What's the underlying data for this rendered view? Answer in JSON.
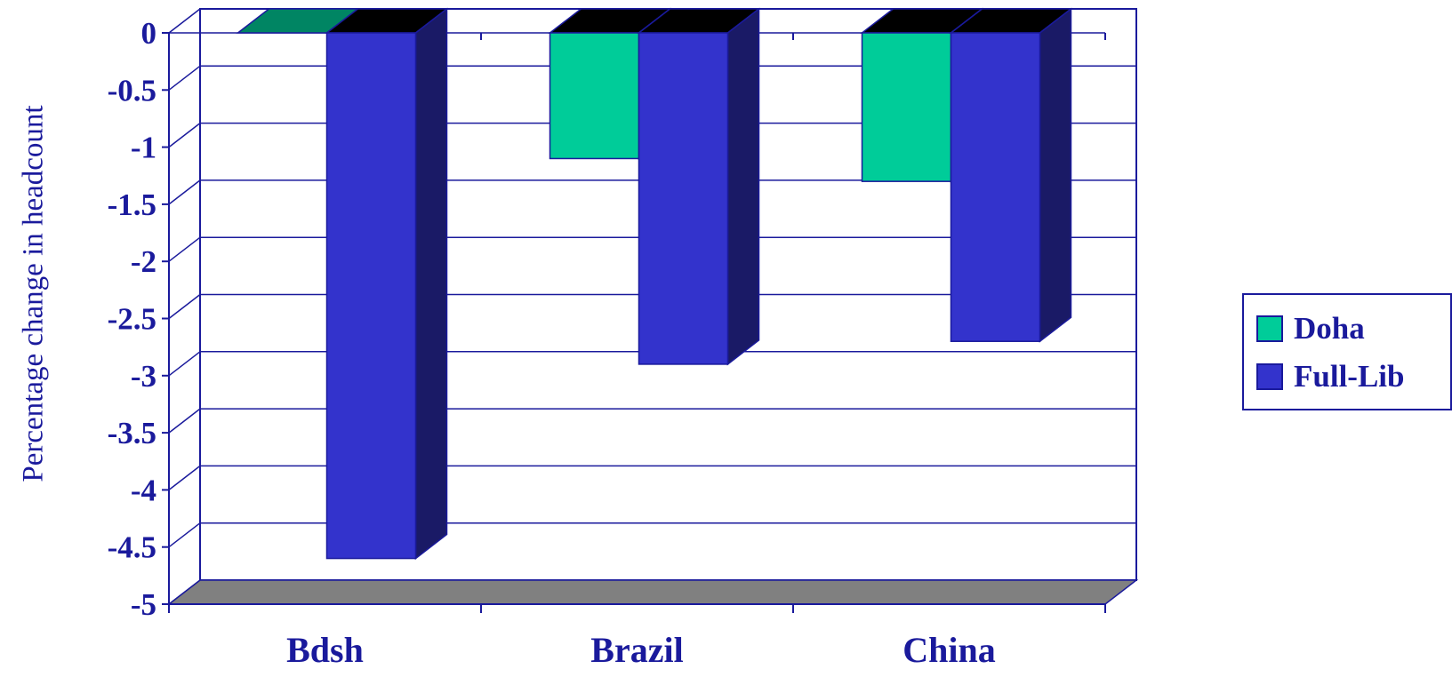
{
  "chart_data": {
    "type": "bar",
    "title": "",
    "xlabel": "",
    "ylabel": "Percentage change in headcount",
    "categories": [
      "Bdsh",
      "Brazil",
      "China"
    ],
    "series": [
      {
        "name": "Doha",
        "values": [
          0,
          -1.1,
          -1.3
        ],
        "color": "#00cc99"
      },
      {
        "name": "Full-Lib",
        "values": [
          -4.6,
          -2.9,
          -2.7
        ],
        "color": "#3333cc"
      }
    ],
    "ylim": [
      -5,
      0
    ],
    "yticks": [
      "0",
      "-0.5",
      "-1",
      "-1.5",
      "-2",
      "-2.5",
      "-3",
      "-3.5",
      "-4",
      "-4.5",
      "-5"
    ],
    "grid": true,
    "legend_position": "right",
    "three_d": true
  },
  "colors": {
    "axis": "#1a1a9c",
    "floor": "#808080",
    "bar_top": "#000000",
    "text": "#1a1a9c"
  }
}
